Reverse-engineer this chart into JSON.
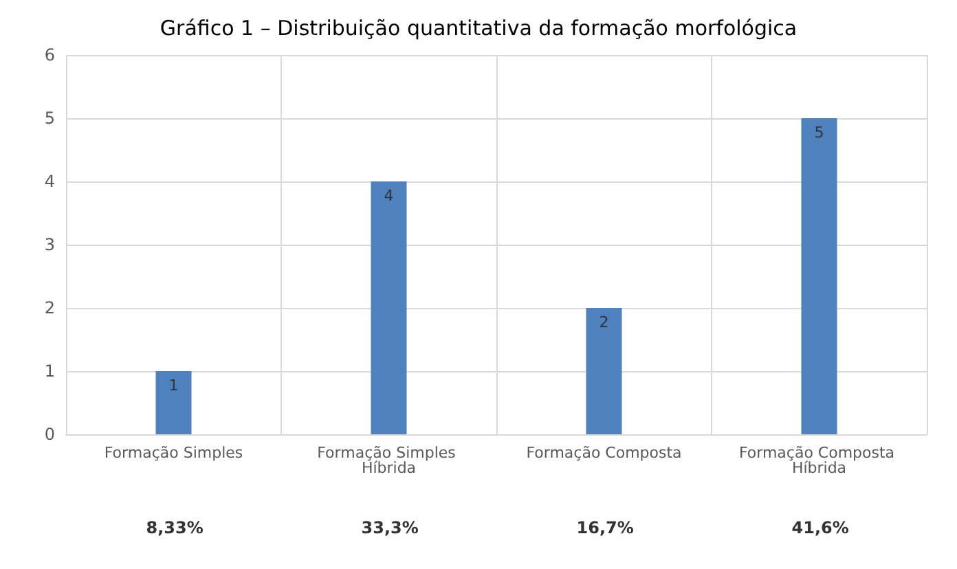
{
  "chart_data": {
    "type": "bar",
    "title": "Gráfico 1 – Distribuição quantitativa da formação morfológica",
    "categories": [
      "Formação Simples",
      "Formação Simples Híbrida",
      "Formação Composta",
      "Formação Composta Híbrida"
    ],
    "values": [
      1,
      4,
      2,
      5
    ],
    "color": "#4f81bd",
    "ylim": [
      0,
      6
    ],
    "yticks": [
      0,
      1,
      2,
      3,
      4,
      5,
      6
    ],
    "grid": true,
    "data_labels": true,
    "annotations": [
      "8,33%",
      "33,3%",
      "16,7%",
      "41,6%"
    ]
  }
}
